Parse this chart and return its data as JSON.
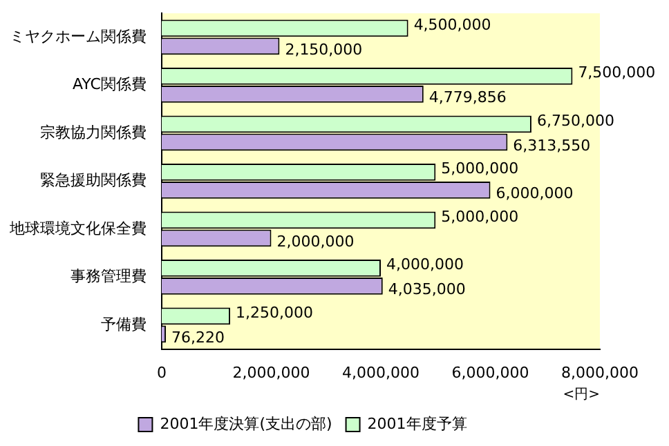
{
  "chart_data": {
    "type": "bar",
    "orientation": "horizontal",
    "categories": [
      "ミヤクホーム関係費",
      "AYC関係費",
      "宗教協力関係費",
      "緊急援助関係費",
      "地球環境文化保全費",
      "事務管理費",
      "予備費"
    ],
    "series": [
      {
        "name": "2001年度予算",
        "color": "#ccffcc",
        "values": [
          4500000,
          7500000,
          6750000,
          5000000,
          5000000,
          4000000,
          1250000
        ],
        "value_labels": [
          "4,500,000",
          "7,500,000",
          "6,750,000",
          "5,000,000",
          "5,000,000",
          "4,000,000",
          "1,250,000"
        ]
      },
      {
        "name": "2001年度決算(支出の部)",
        "color": "#c0a8e0",
        "values": [
          2150000,
          4779856,
          6313550,
          6000000,
          2000000,
          4035000,
          76220
        ],
        "value_labels": [
          "2,150,000",
          "4,779,856",
          "6,313,550",
          "6,000,000",
          "2,000,000",
          "4,035,000",
          "76,220"
        ]
      }
    ],
    "xlim": [
      0,
      8000000
    ],
    "xticks": [
      {
        "value": 0,
        "label": "0"
      },
      {
        "value": 2000000,
        "label": "2,000,000"
      },
      {
        "value": 4000000,
        "label": "4,000,000"
      },
      {
        "value": 6000000,
        "label": "6,000,000"
      },
      {
        "value": 8000000,
        "label": "8,000,000"
      }
    ],
    "xlabel": "<円>",
    "grid": false,
    "legend": "bottom"
  }
}
